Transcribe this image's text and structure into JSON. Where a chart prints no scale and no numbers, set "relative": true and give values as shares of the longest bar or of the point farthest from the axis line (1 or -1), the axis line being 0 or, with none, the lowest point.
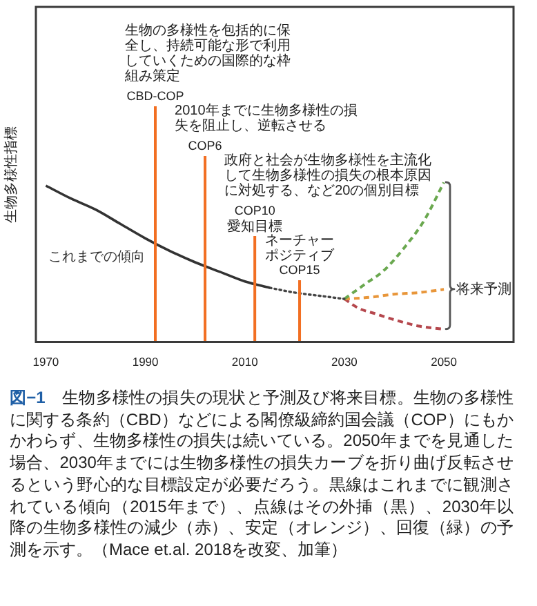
{
  "chart_data": {
    "type": "line",
    "ylabel": "生物多様性指標",
    "relative": true,
    "xlim": [
      1968,
      2064
    ],
    "xticks": [
      1970,
      1990,
      2010,
      2030,
      2050
    ],
    "tick_labels": "x",
    "marker": "none",
    "series": [
      {
        "name": "これまでの傾向",
        "color": "#333333",
        "line_style": "solid",
        "x": [
          1970,
          1975,
          1980,
          1985,
          1990,
          1995,
          2000,
          2005,
          2010,
          2015
        ],
        "values": [
          0.98,
          0.9,
          0.83,
          0.74,
          0.65,
          0.57,
          0.5,
          0.44,
          0.38,
          0.34
        ]
      },
      {
        "color": "#444444",
        "line_style": "dotted",
        "x": [
          2015,
          2020,
          2025,
          2030
        ],
        "values": [
          0.34,
          0.31,
          0.29,
          0.27
        ]
      },
      {
        "color": "#6aa84f",
        "line_style": "dashed",
        "x": [
          2030,
          2034,
          2038,
          2042,
          2046,
          2050
        ],
        "values": [
          0.27,
          0.36,
          0.45,
          0.59,
          0.76,
          1.0
        ]
      },
      {
        "color": "#e8963a",
        "line_style": "dashed",
        "x": [
          2030,
          2035,
          2040,
          2045,
          2050
        ],
        "values": [
          0.27,
          0.28,
          0.3,
          0.31,
          0.33
        ]
      },
      {
        "color": "#b5474d",
        "line_style": "dashed",
        "x": [
          2030,
          2033,
          2036,
          2040,
          2045,
          2050
        ],
        "values": [
          0.27,
          0.21,
          0.18,
          0.14,
          0.1,
          0.08
        ]
      }
    ],
    "ref_lines": [
      {
        "axis": "x",
        "value": 1992,
        "label": "CBD-COP",
        "color": "#f26f22"
      },
      {
        "axis": "x",
        "value": 2002,
        "label": "COP6",
        "color": "#f26f22"
      },
      {
        "axis": "x",
        "value": 2012,
        "label": "COP10\n愛知目標",
        "color": "#f26f22"
      },
      {
        "axis": "x",
        "value": 2021,
        "label": "ネーチャーポジティブ\nCOP15",
        "color": "#f26f22"
      }
    ],
    "annotations": [
      "生物の多様性を包括的に保全し、持続可能な形で利用していくための国際的な枠組み策定",
      "2010年までに生物多様性の損失を阻止し、逆転させる",
      "政府と社会が生物多様性を主流化して生物多様性の損失の根本原因に対処する、など20の個別目標",
      {
        "text": "将来予測",
        "x": 2050
      },
      "図−1　生物多様性の損失の現状と予測及び将来目標。生物の多様性に関する条約（CBD）などによる閣僚級締約国会議（COP）にもかかわらず、生物多様性の損失は続いている。2050年までを見通した場合、2030年までには生物多様性の損失カーブを折り曲げ反転させるという野心的な目標設定が必要だろう。黒線はこれまでに観測されている傾向（2015年まで）、点線はその外挿（黒）、2030年以降の生物多様性の減少（赤）、安定（オレンジ）、回復（緑）の予測を示す。（Mace et.al. 2018を改変、加筆）"
    ]
  }
}
